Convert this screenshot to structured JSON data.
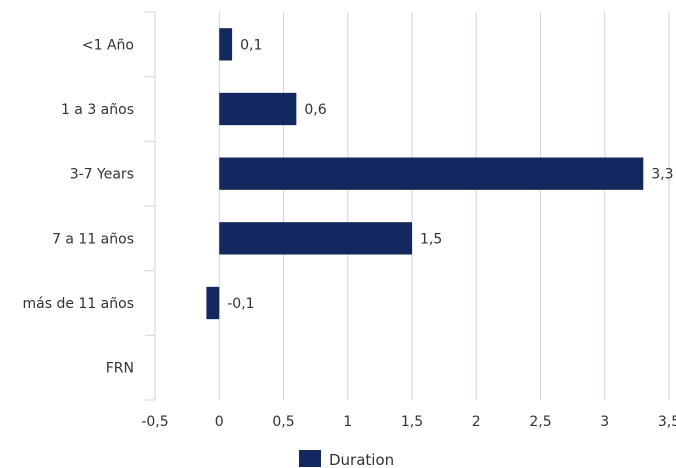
{
  "chart_data": {
    "type": "bar",
    "orientation": "horizontal",
    "categories": [
      "<1 Año",
      "1 a 3 años",
      "3-7 Years",
      "7 a 11 años",
      "más de 11 años",
      "FRN"
    ],
    "series": [
      {
        "name": "Duration",
        "values": [
          0.1,
          0.6,
          3.3,
          1.5,
          -0.1,
          null
        ],
        "labels": [
          "0,1",
          "0,6",
          "3,3",
          "1,5",
          "-0,1",
          ""
        ]
      }
    ],
    "xlim": [
      -0.5,
      3.5
    ],
    "xticks": [
      -0.5,
      0,
      0.5,
      1,
      1.5,
      2,
      2.5,
      3,
      3.5
    ],
    "xtick_labels": [
      "-0,5",
      "0",
      "0,5",
      "1",
      "1,5",
      "2",
      "2,5",
      "3",
      "3,5"
    ],
    "grid": true,
    "legend": "bottom",
    "color": "#13285e",
    "gridColor": "#cdd6e0"
  }
}
